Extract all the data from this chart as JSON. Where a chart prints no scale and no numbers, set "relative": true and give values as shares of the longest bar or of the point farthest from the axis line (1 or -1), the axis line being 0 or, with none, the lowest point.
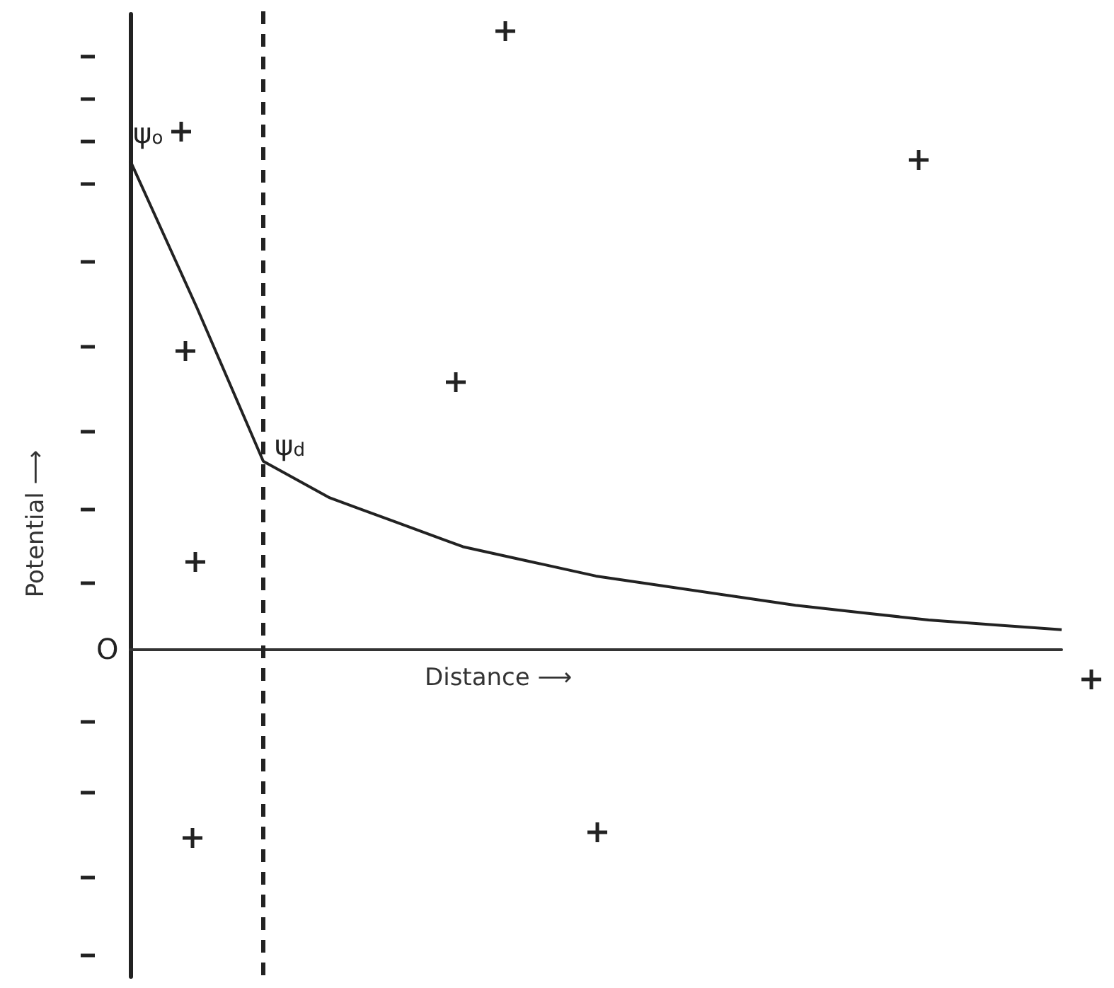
{
  "chart_data": {
    "type": "line",
    "relative": true,
    "xlabel": "Distance ⟶",
    "ylabel": "Potential ⟶",
    "categories": [
      null,
      null,
      null,
      null,
      null,
      null,
      null,
      null,
      null,
      null,
      null,
      null,
      null,
      null,
      null
    ],
    "series": [
      {
        "color": "#222222",
        "values": [
          1.0,
          0.7,
          0.385,
          0.31,
          0.26,
          0.21,
          0.18,
          0.15,
          0.13,
          0.11,
          0.09,
          0.075,
          0.06,
          0.05,
          0.04
        ]
      }
    ],
    "annotations": [
      "ψ$_{o}$",
      "ψ$_{d}$",
      "O"
    ]
  }
}
